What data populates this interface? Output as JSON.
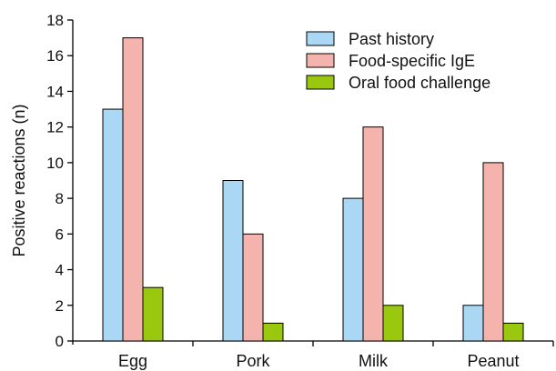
{
  "chart_data": {
    "type": "bar",
    "title": "",
    "xlabel": "",
    "ylabel": "Positive reactions (n)",
    "ylim": [
      0,
      18
    ],
    "yticks": [
      0,
      2,
      4,
      6,
      8,
      10,
      12,
      14,
      16,
      18
    ],
    "categories": [
      "Egg",
      "Pork",
      "Milk",
      "Peanut"
    ],
    "series": [
      {
        "name": "Past history",
        "color": "#a9d7f4",
        "values": [
          13,
          9,
          8,
          2
        ]
      },
      {
        "name": "Food-specific IgE",
        "color": "#f4b3ad",
        "values": [
          17,
          6,
          12,
          10
        ]
      },
      {
        "name": "Oral food challenge",
        "color": "#99c80e",
        "values": [
          3,
          1,
          2,
          1
        ]
      }
    ],
    "legend_position": "top-right",
    "grid": false
  }
}
